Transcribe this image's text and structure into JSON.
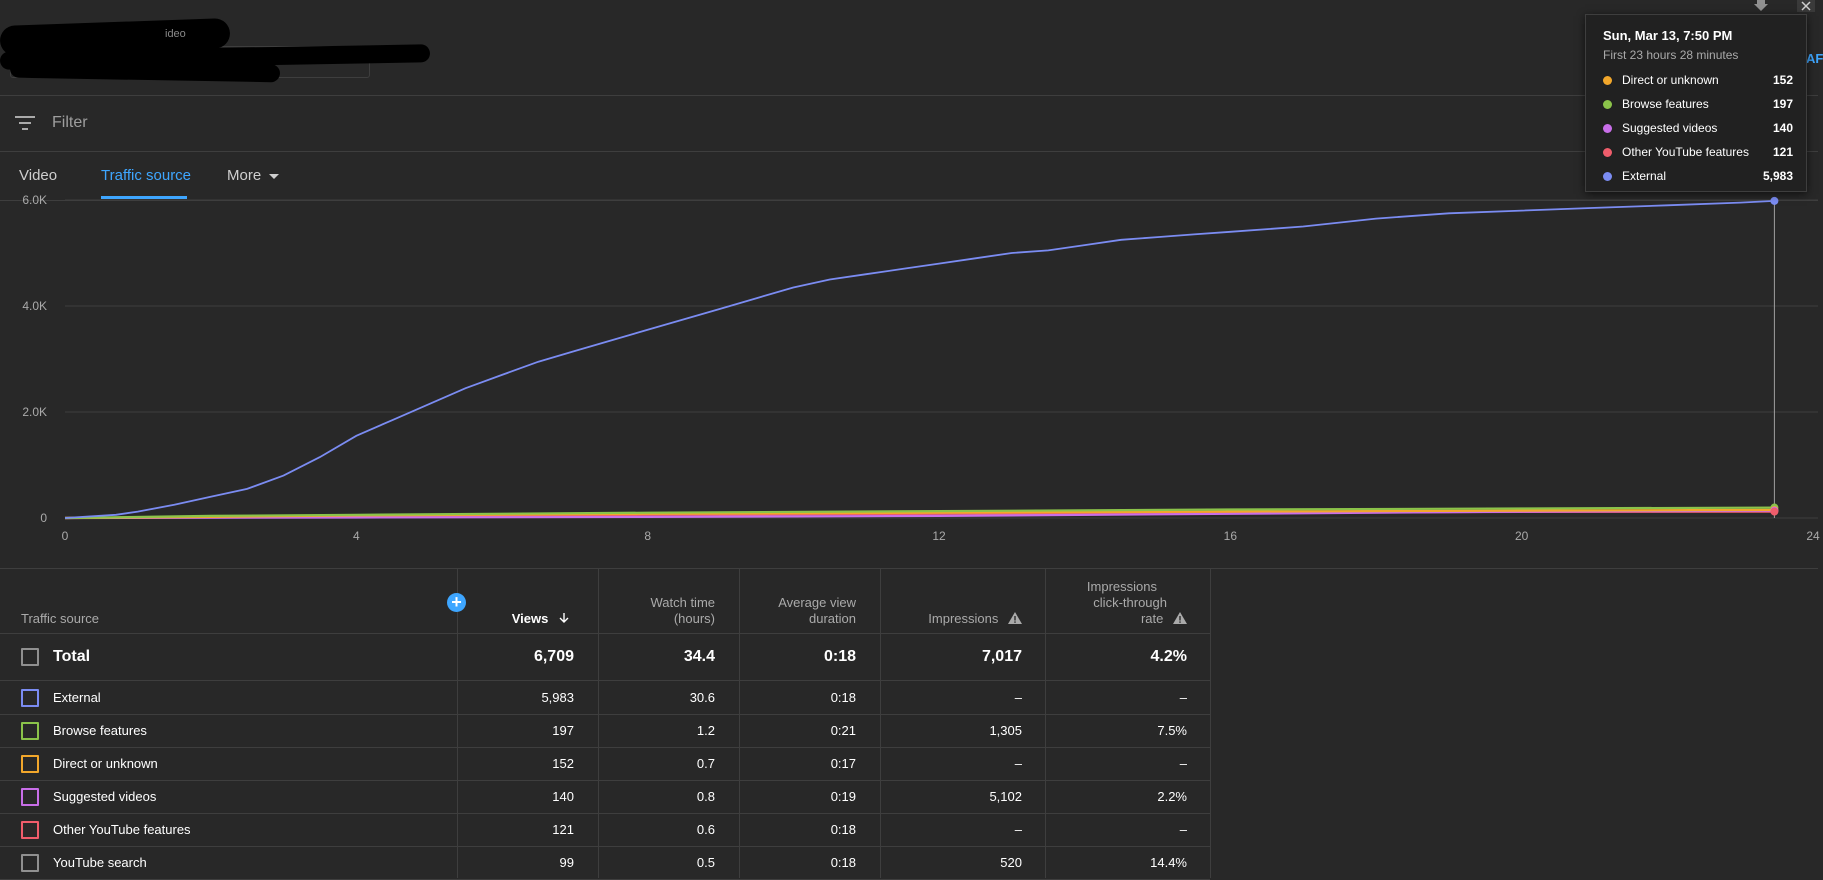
{
  "header": {
    "channel_text": "ideo"
  },
  "filter": {
    "label": "Filter"
  },
  "tabs": [
    {
      "label": "Video"
    },
    {
      "label": "Traffic source"
    },
    {
      "label": "More"
    }
  ],
  "tooltip": {
    "date": "Sun, Mar 13, 7:50 PM",
    "subtitle": "First 23 hours 28 minutes",
    "rows": [
      {
        "name": "Direct or unknown",
        "value": "152",
        "color": "#f2a72b"
      },
      {
        "name": "Browse features",
        "value": "197",
        "color": "#8bc34a"
      },
      {
        "name": "Suggested videos",
        "value": "140",
        "color": "#c86ee8"
      },
      {
        "name": "Other YouTube features",
        "value": "121",
        "color": "#ef5d6b"
      },
      {
        "name": "External",
        "value": "5,983",
        "color": "#7b8cf2"
      }
    ]
  },
  "edge_text": "AF",
  "chart_data": {
    "type": "line",
    "x_ticks": [
      "0",
      "4",
      "8",
      "12",
      "16",
      "20",
      "24"
    ],
    "y_ticks": [
      "0",
      "2.0K",
      "4.0K",
      "6.0K"
    ],
    "xlim": [
      0,
      24
    ],
    "ylim": [
      0,
      6000
    ],
    "cumulative": true,
    "series": [
      {
        "name": "External",
        "color": "#7b8cf2",
        "x": [
          0,
          0.7,
          1,
          1.5,
          2,
          2.5,
          3,
          3.5,
          4,
          4.5,
          5,
          5.5,
          6,
          6.5,
          7,
          7.5,
          8,
          8.5,
          9,
          9.5,
          10,
          10.5,
          11,
          11.5,
          12,
          12.5,
          13,
          13.5,
          14,
          14.5,
          15,
          15.5,
          16,
          17,
          18,
          19,
          20,
          21,
          22,
          23,
          23.47
        ],
        "y": [
          0,
          60,
          120,
          250,
          400,
          550,
          800,
          1150,
          1550,
          1850,
          2150,
          2450,
          2700,
          2950,
          3150,
          3350,
          3550,
          3750,
          3950,
          4150,
          4350,
          4500,
          4600,
          4700,
          4800,
          4900,
          5000,
          5050,
          5150,
          5250,
          5300,
          5350,
          5400,
          5500,
          5650,
          5750,
          5800,
          5850,
          5900,
          5950,
          5983
        ]
      },
      {
        "name": "Browse features",
        "color": "#8bc34a",
        "x": [
          0,
          2,
          4,
          8,
          12,
          16,
          20,
          23.47
        ],
        "y": [
          0,
          40,
          60,
          100,
          130,
          160,
          180,
          197
        ]
      },
      {
        "name": "Direct or unknown",
        "color": "#f2a72b",
        "x": [
          0,
          2,
          4,
          8,
          12,
          16,
          20,
          23.47
        ],
        "y": [
          0,
          20,
          50,
          80,
          100,
          120,
          140,
          152
        ]
      },
      {
        "name": "Suggested videos",
        "color": "#c86ee8",
        "x": [
          0,
          4,
          8,
          12,
          16,
          20,
          23.47
        ],
        "y": [
          0,
          10,
          20,
          40,
          80,
          120,
          140
        ]
      },
      {
        "name": "Other YouTube features",
        "color": "#ef5d6b",
        "x": [
          0,
          2,
          4,
          8,
          12,
          16,
          20,
          23.47
        ],
        "y": [
          0,
          15,
          30,
          60,
          80,
          100,
          115,
          121
        ]
      }
    ]
  },
  "table": {
    "headers": {
      "source": "Traffic source",
      "views": "Views",
      "watch_time_1": "Watch time",
      "watch_time_2": "(hours)",
      "avd_1": "Average view",
      "avd_2": "duration",
      "impressions": "Impressions",
      "ctr_1": "Impressions",
      "ctr_2": "click-through",
      "ctr_3": "rate"
    },
    "total": {
      "name": "Total",
      "views": "6,709",
      "watch": "34.4",
      "avd": "0:18",
      "impressions": "7,017",
      "ctr": "4.2%"
    },
    "rows": [
      {
        "name": "External",
        "color": "#7b8cf2",
        "views": "5,983",
        "watch": "30.6",
        "avd": "0:18",
        "impressions": "–",
        "ctr": "–"
      },
      {
        "name": "Browse features",
        "color": "#8bc34a",
        "views": "197",
        "watch": "1.2",
        "avd": "0:21",
        "impressions": "1,305",
        "ctr": "7.5%"
      },
      {
        "name": "Direct or unknown",
        "color": "#f2a72b",
        "views": "152",
        "watch": "0.7",
        "avd": "0:17",
        "impressions": "–",
        "ctr": "–"
      },
      {
        "name": "Suggested videos",
        "color": "#c86ee8",
        "views": "140",
        "watch": "0.8",
        "avd": "0:19",
        "impressions": "5,102",
        "ctr": "2.2%"
      },
      {
        "name": "Other YouTube features",
        "color": "#ef5d6b",
        "views": "121",
        "watch": "0.6",
        "avd": "0:18",
        "impressions": "–",
        "ctr": "–"
      },
      {
        "name": "YouTube search",
        "color": "#909090",
        "views": "99",
        "watch": "0.5",
        "avd": "0:18",
        "impressions": "520",
        "ctr": "14.4%"
      }
    ]
  }
}
